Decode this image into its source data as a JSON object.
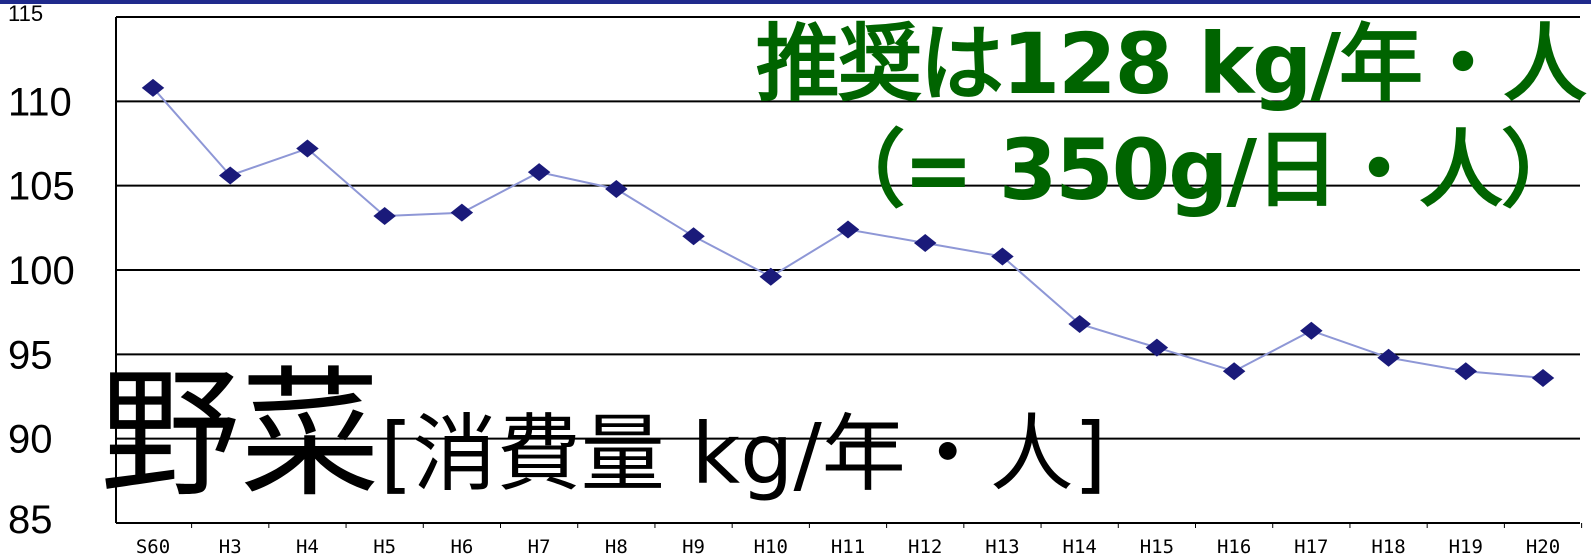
{
  "chart_data": {
    "type": "line",
    "title": "野菜",
    "subtitle": "[消費量 kg/年・人]",
    "annotation_line1": "推奨は128 kg/年・人",
    "annotation_line2": "（= 350g/日・人）",
    "categories": [
      "S60",
      "H3",
      "H4",
      "H5",
      "H6",
      "H7",
      "H8",
      "H9",
      "H10",
      "H11",
      "H12",
      "H13",
      "H14",
      "H15",
      "H16",
      "H17",
      "H18",
      "H19",
      "H20"
    ],
    "series": [
      {
        "values": [
          110.8,
          105.6,
          107.2,
          103.2,
          103.4,
          105.8,
          104.8,
          102.0,
          99.6,
          102.4,
          101.6,
          100.8,
          96.8,
          95.4,
          94.0,
          96.4,
          94.8,
          94.0,
          93.6
        ]
      }
    ],
    "y_ticks": [
      "115",
      "110",
      "105",
      "100",
      "95",
      "90",
      "85"
    ],
    "ylim": [
      85,
      115
    ],
    "grid": "horizontal",
    "line_color": "#8e97d6",
    "marker_color": "#1a1a7a",
    "annotation_color": "#006400"
  }
}
